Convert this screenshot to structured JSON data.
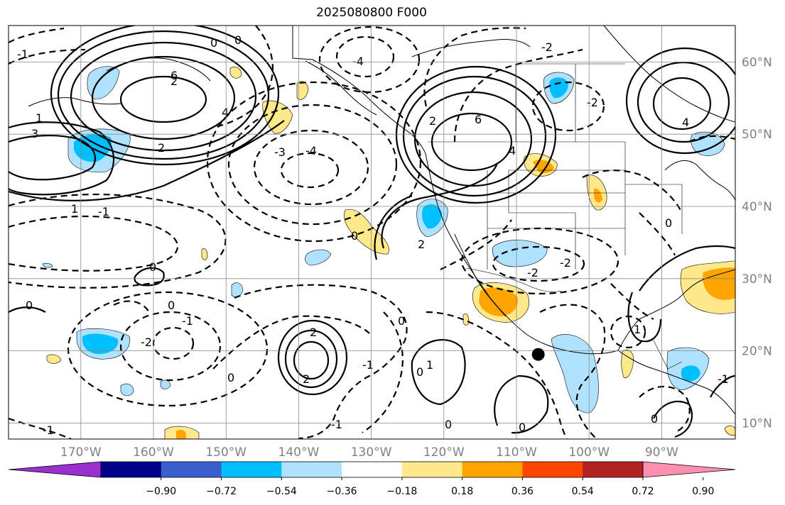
{
  "title": "2025080800 F000",
  "map": {
    "type": "contour-map",
    "extent": {
      "lon": [
        -180,
        -80
      ],
      "lat": [
        8,
        65
      ]
    },
    "lon_ticks": [
      {
        "value": -170,
        "label": "170°W"
      },
      {
        "value": -160,
        "label": "160°W"
      },
      {
        "value": -150,
        "label": "150°W"
      },
      {
        "value": -140,
        "label": "140°W"
      },
      {
        "value": -130,
        "label": "130°W"
      },
      {
        "value": -120,
        "label": "120°W"
      },
      {
        "value": -110,
        "label": "110°W"
      },
      {
        "value": -100,
        "label": "100°W"
      },
      {
        "value": -90,
        "label": "90°W"
      }
    ],
    "lat_ticks": [
      {
        "value": 60,
        "label": "60°N"
      },
      {
        "value": 50,
        "label": "50°N"
      },
      {
        "value": 40,
        "label": "40°N"
      },
      {
        "value": 30,
        "label": "30°N"
      },
      {
        "value": 20,
        "label": "20°N"
      },
      {
        "value": 10,
        "label": "10°N"
      }
    ],
    "grid": true,
    "marker": {
      "lon": -107,
      "lat": 19.5,
      "shape": "filled-circle",
      "color": "#000000"
    },
    "contour_labels": [
      "0",
      "-1",
      "-2",
      "-3",
      "-4",
      "1",
      "2",
      "3",
      "4",
      "6"
    ]
  },
  "colorbar": {
    "ticks": [
      "−0.90",
      "−0.72",
      "−0.54",
      "−0.36",
      "−0.18",
      "0.18",
      "0.36",
      "0.54",
      "0.72",
      "0.90"
    ],
    "colors": [
      "#9b30d0",
      "#00008b",
      "#3a5fcd",
      "#00bfff",
      "#b0e2ff",
      "#ffffff",
      "#ffe98a",
      "#ffa500",
      "#ff4500",
      "#b22222",
      "#ff8fb0"
    ],
    "extend": "both"
  }
}
